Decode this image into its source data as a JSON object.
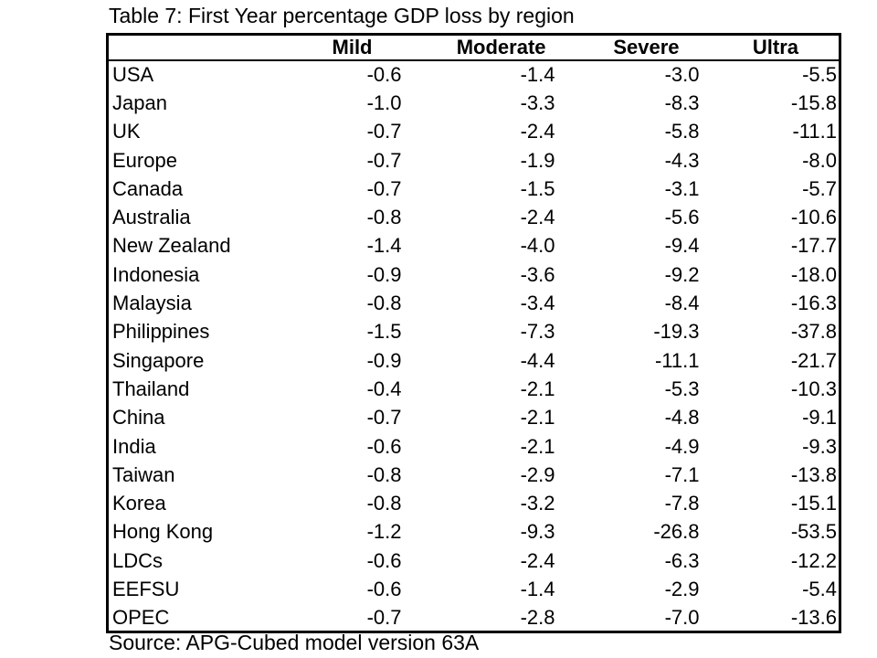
{
  "title": "Table 7: First Year percentage GDP loss by region",
  "source": "Source: APG-Cubed model version 63A",
  "chart_data": {
    "type": "table",
    "title": "Table 7: First Year percentage GDP loss by region",
    "columns": [
      "",
      "Mild",
      "Moderate",
      "Severe",
      "Ultra"
    ],
    "rows": [
      {
        "region": "USA",
        "mild": "-0.6",
        "moderate": "-1.4",
        "severe": "-3.0",
        "ultra": "-5.5"
      },
      {
        "region": "Japan",
        "mild": "-1.0",
        "moderate": "-3.3",
        "severe": "-8.3",
        "ultra": "-15.8"
      },
      {
        "region": "UK",
        "mild": "-0.7",
        "moderate": "-2.4",
        "severe": "-5.8",
        "ultra": "-11.1"
      },
      {
        "region": "Europe",
        "mild": "-0.7",
        "moderate": "-1.9",
        "severe": "-4.3",
        "ultra": "-8.0"
      },
      {
        "region": "Canada",
        "mild": "-0.7",
        "moderate": "-1.5",
        "severe": "-3.1",
        "ultra": "-5.7"
      },
      {
        "region": "Australia",
        "mild": "-0.8",
        "moderate": "-2.4",
        "severe": "-5.6",
        "ultra": "-10.6"
      },
      {
        "region": "New Zealand",
        "mild": "-1.4",
        "moderate": "-4.0",
        "severe": "-9.4",
        "ultra": "-17.7"
      },
      {
        "region": "Indonesia",
        "mild": "-0.9",
        "moderate": "-3.6",
        "severe": "-9.2",
        "ultra": "-18.0"
      },
      {
        "region": "Malaysia",
        "mild": "-0.8",
        "moderate": "-3.4",
        "severe": "-8.4",
        "ultra": "-16.3"
      },
      {
        "region": "Philippines",
        "mild": "-1.5",
        "moderate": "-7.3",
        "severe": "-19.3",
        "ultra": "-37.8"
      },
      {
        "region": "Singapore",
        "mild": "-0.9",
        "moderate": "-4.4",
        "severe": "-11.1",
        "ultra": "-21.7"
      },
      {
        "region": "Thailand",
        "mild": "-0.4",
        "moderate": "-2.1",
        "severe": "-5.3",
        "ultra": "-10.3"
      },
      {
        "region": "China",
        "mild": "-0.7",
        "moderate": "-2.1",
        "severe": "-4.8",
        "ultra": "-9.1"
      },
      {
        "region": "India",
        "mild": "-0.6",
        "moderate": "-2.1",
        "severe": "-4.9",
        "ultra": "-9.3"
      },
      {
        "region": "Taiwan",
        "mild": "-0.8",
        "moderate": "-2.9",
        "severe": "-7.1",
        "ultra": "-13.8"
      },
      {
        "region": "Korea",
        "mild": "-0.8",
        "moderate": "-3.2",
        "severe": "-7.8",
        "ultra": "-15.1"
      },
      {
        "region": "Hong Kong",
        "mild": "-1.2",
        "moderate": "-9.3",
        "severe": "-26.8",
        "ultra": "-53.5"
      },
      {
        "region": "LDCs",
        "mild": "-0.6",
        "moderate": "-2.4",
        "severe": "-6.3",
        "ultra": "-12.2"
      },
      {
        "region": "EEFSU",
        "mild": "-0.6",
        "moderate": "-1.4",
        "severe": "-2.9",
        "ultra": "-5.4"
      },
      {
        "region": "OPEC",
        "mild": "-0.7",
        "moderate": "-2.8",
        "severe": "-7.0",
        "ultra": "-13.6"
      }
    ]
  }
}
